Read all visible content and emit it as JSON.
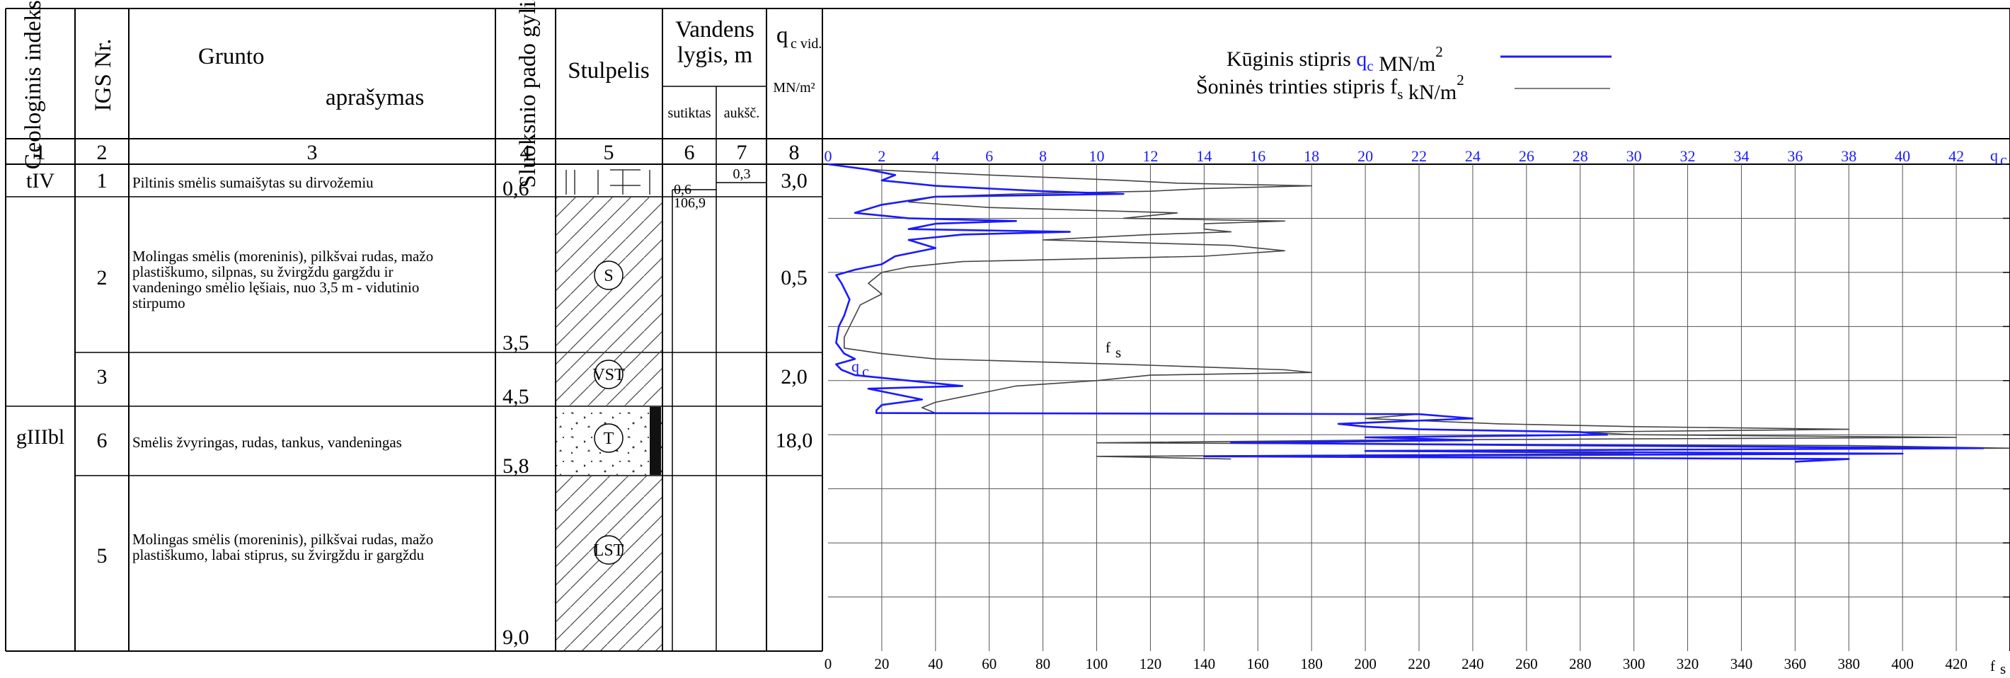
{
  "headers": {
    "geo_index": "Geologinis indeksas",
    "igs_nr": "IGS Nr.",
    "grunto": "Grunto",
    "aprasymas": "aprašymas",
    "sluoksnio": "Sluoksnio pado gylis, m",
    "stulpelis": "Stulpelis",
    "vandens": "Vandens",
    "lygis": "lygis, m",
    "sutiktas": "sutiktas",
    "aukst": "aukšč.",
    "qc_main": "q",
    "qc_sub": "c vid.",
    "qc_unit": "MN/m²"
  },
  "column_numbers": [
    "1",
    "2",
    "3",
    "4",
    "5",
    "6",
    "7",
    "8"
  ],
  "legend": {
    "qc_prefix": "Kūginis stipris",
    "qc_symbol": "q",
    "qc_sub": "c",
    "qc_unit": "MN/m",
    "qc_exp": "2",
    "fs_prefix": "Šoninės trinties stipris",
    "fs_symbol": "f",
    "fs_sub": "s",
    "fs_unit": "kN/m",
    "fs_exp": "2",
    "qc_color": "#1a1aff",
    "fs_color": "#333333"
  },
  "geo_indices": [
    "tIV",
    "gIIIbl"
  ],
  "layers": [
    {
      "igs": "1",
      "description": "Piltinis smėlis sumaišytas su dirvožemiu",
      "depth": "0,6",
      "symbol": "",
      "qc": "3,0"
    },
    {
      "igs": "2",
      "description": "Molingas smėlis (moreninis), pilkšvai rudas, mažo plastiškumo, silpnas, su žvirgždu gargždu ir vandeningo smėlio lęšiais, nuo 3,5 m - vidutinio stirpumo",
      "depth": "3,5",
      "symbol": "S",
      "qc": "0,5"
    },
    {
      "igs": "3",
      "description": "",
      "depth": "4,5",
      "symbol": "VST",
      "qc": "2,0"
    },
    {
      "igs": "6",
      "description": "Smėlis žvyringas, rudas, tankus, vandeningas",
      "depth": "5,8",
      "symbol": "T",
      "qc": "18,0"
    },
    {
      "igs": "5",
      "description": "Molingas smėlis (moreninis), pilkšvai rudas, mažo plastiškumo, labai stiprus, su žvirgždu ir gargždu",
      "depth": "9,0",
      "symbol": "LST",
      "qc": ""
    }
  ],
  "water": {
    "met_depth": "0,6",
    "met_elev": "106,9",
    "rise": "0,3"
  },
  "axes": {
    "qc_ticks": [
      "0",
      "2",
      "4",
      "6",
      "8",
      "10",
      "12",
      "14",
      "16",
      "18",
      "20",
      "22",
      "24",
      "26",
      "28",
      "30",
      "32",
      "34",
      "36",
      "38",
      "40",
      "42"
    ],
    "qc_label": "q",
    "qc_label_sub": "c",
    "fs_ticks": [
      "0",
      "20",
      "40",
      "60",
      "80",
      "100",
      "120",
      "140",
      "160",
      "180",
      "200",
      "220",
      "240",
      "260",
      "280",
      "300",
      "320",
      "340",
      "360",
      "380",
      "400",
      "420"
    ],
    "fs_label": "f",
    "fs_label_sub": "s"
  },
  "chart_data": {
    "type": "line",
    "title": "",
    "xlabel_top": "qc MN/m²",
    "xlabel_bottom": "fs kN/m²",
    "ylabel": "",
    "depth_range": [
      0,
      9.0
    ],
    "qc_range": [
      0,
      44
    ],
    "fs_range": [
      0,
      440
    ],
    "series": [
      {
        "name": "Kūginis stipris qc, MN/m²",
        "points": [
          [
            0,
            0
          ],
          [
            0.1,
            1.5
          ],
          [
            0.2,
            2.5
          ],
          [
            0.3,
            2
          ],
          [
            0.4,
            4
          ],
          [
            0.5,
            8
          ],
          [
            0.55,
            11
          ],
          [
            0.6,
            4
          ],
          [
            0.75,
            2
          ],
          [
            0.9,
            1
          ],
          [
            1.0,
            3
          ],
          [
            1.05,
            7
          ],
          [
            1.1,
            4
          ],
          [
            1.2,
            3
          ],
          [
            1.25,
            9
          ],
          [
            1.3,
            5
          ],
          [
            1.4,
            3
          ],
          [
            1.55,
            4
          ],
          [
            1.7,
            2.5
          ],
          [
            1.85,
            2
          ],
          [
            1.95,
            1
          ],
          [
            2.05,
            0.3
          ],
          [
            2.2,
            0.5
          ],
          [
            2.5,
            0.8
          ],
          [
            2.8,
            0.6
          ],
          [
            3.0,
            0.4
          ],
          [
            3.3,
            0.3
          ],
          [
            3.5,
            0.6
          ],
          [
            3.6,
            1
          ],
          [
            3.7,
            0.3
          ],
          [
            3.8,
            0.5
          ],
          [
            3.9,
            1
          ],
          [
            4.0,
            3
          ],
          [
            4.1,
            5
          ],
          [
            4.15,
            1.5
          ],
          [
            4.25,
            2.5
          ],
          [
            4.35,
            3.5
          ],
          [
            4.45,
            2
          ],
          [
            4.55,
            1.8
          ],
          [
            4.6,
            1.8
          ],
          [
            4.62,
            22
          ],
          [
            4.7,
            24
          ],
          [
            4.8,
            19
          ],
          [
            4.85,
            20
          ],
          [
            4.9,
            22
          ],
          [
            4.95,
            28
          ],
          [
            5.0,
            29
          ],
          [
            5.05,
            20
          ],
          [
            5.1,
            24
          ],
          [
            5.15,
            15
          ],
          [
            5.2,
            28
          ],
          [
            5.25,
            43
          ],
          [
            5.3,
            20
          ],
          [
            5.35,
            40
          ],
          [
            5.4,
            14
          ],
          [
            5.45,
            38
          ],
          [
            5.5,
            36
          ]
        ]
      },
      {
        "name": "Šoninės trinties stipris fs, kN/m²",
        "points": [
          [
            0,
            0
          ],
          [
            0.1,
            15
          ],
          [
            0.2,
            60
          ],
          [
            0.3,
            110
          ],
          [
            0.35,
            130
          ],
          [
            0.4,
            180
          ],
          [
            0.45,
            140
          ],
          [
            0.5,
            120
          ],
          [
            0.55,
            70
          ],
          [
            0.6,
            40
          ],
          [
            0.7,
            30
          ],
          [
            0.8,
            60
          ],
          [
            0.9,
            130
          ],
          [
            1.0,
            110
          ],
          [
            1.05,
            170
          ],
          [
            1.1,
            140
          ],
          [
            1.2,
            140
          ],
          [
            1.25,
            150
          ],
          [
            1.3,
            120
          ],
          [
            1.4,
            80
          ],
          [
            1.5,
            150
          ],
          [
            1.6,
            170
          ],
          [
            1.7,
            140
          ],
          [
            1.8,
            50
          ],
          [
            1.9,
            30
          ],
          [
            2.0,
            20
          ],
          [
            2.2,
            15
          ],
          [
            2.4,
            20
          ],
          [
            2.6,
            12
          ],
          [
            2.8,
            10
          ],
          [
            3.0,
            8
          ],
          [
            3.2,
            6
          ],
          [
            3.4,
            6
          ],
          [
            3.5,
            20
          ],
          [
            3.6,
            40
          ],
          [
            3.7,
            110
          ],
          [
            3.75,
            140
          ],
          [
            3.8,
            170
          ],
          [
            3.85,
            180
          ],
          [
            3.9,
            120
          ],
          [
            4.0,
            100
          ],
          [
            4.1,
            70
          ],
          [
            4.2,
            60
          ],
          [
            4.3,
            50
          ],
          [
            4.4,
            40
          ],
          [
            4.5,
            35
          ],
          [
            4.6,
            40
          ],
          [
            4.62,
            220
          ],
          [
            4.7,
            200
          ],
          [
            4.8,
            250
          ],
          [
            4.85,
            300
          ],
          [
            4.9,
            380
          ],
          [
            4.95,
            280
          ],
          [
            5.0,
            300
          ],
          [
            5.05,
            420
          ],
          [
            5.1,
            200
          ],
          [
            5.15,
            100
          ],
          [
            5.2,
            380
          ],
          [
            5.25,
            440
          ],
          [
            5.3,
            200
          ],
          [
            5.35,
            300
          ],
          [
            5.4,
            100
          ],
          [
            5.45,
            150
          ]
        ]
      }
    ]
  }
}
